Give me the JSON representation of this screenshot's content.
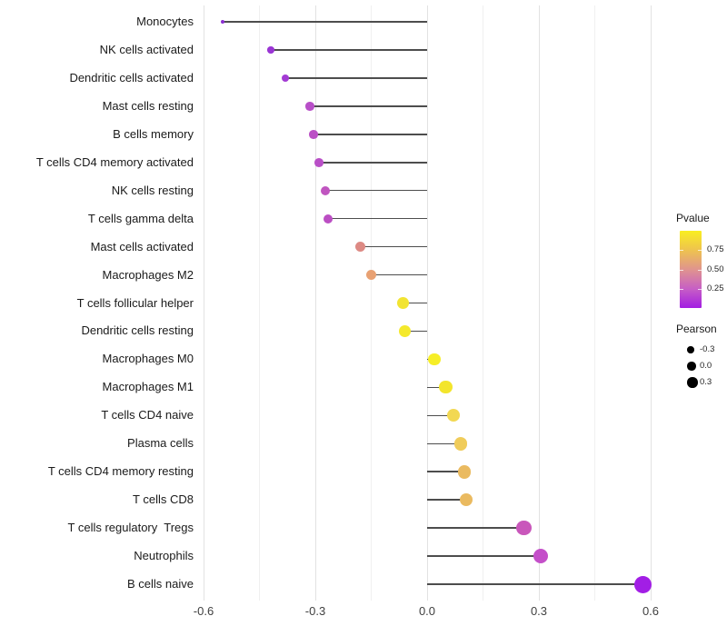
{
  "chart_data": {
    "type": "scatter",
    "subtype": "lollipop",
    "orientation": "horizontal",
    "title": "",
    "xlabel": "",
    "ylabel": "",
    "grid": "vertical-major-and-minor",
    "legend_position": "right",
    "xlim": [
      -0.63,
      0.64
    ],
    "x_ticks": [
      -0.6,
      -0.3,
      0.0,
      0.3,
      0.6
    ],
    "x_tick_labels": [
      "-0.6",
      "-0.3",
      "0.0",
      "0.3",
      "0.6"
    ],
    "x_minor_ticks": [
      -0.45,
      -0.15,
      0.15,
      0.45
    ],
    "baseline": 0.0,
    "stem_color": "#4d4d4d",
    "categories": [
      "Monocytes",
      "NK cells activated",
      "Dendritic cells activated",
      "Mast cells resting",
      "B cells memory",
      "T cells CD4 memory activated",
      "NK cells resting",
      "T cells gamma delta",
      "Mast cells activated",
      "Macrophages M2",
      "T cells follicular helper",
      "Dendritic cells resting",
      "Macrophages M0",
      "Macrophages M1",
      "T cells CD4 naive",
      "Plasma cells",
      "T cells CD4 memory resting",
      "T cells CD8",
      "T cells regulatory  Tregs",
      "Neutrophils",
      "B cells naive"
    ],
    "series": [
      {
        "name": "Pearson",
        "values": [
          -0.55,
          -0.42,
          -0.38,
          -0.315,
          -0.305,
          -0.29,
          -0.273,
          -0.265,
          -0.18,
          -0.15,
          -0.065,
          -0.06,
          0.02,
          0.05,
          0.07,
          0.09,
          0.1,
          0.105,
          0.26,
          0.305,
          0.58
        ]
      }
    ],
    "point_colors": [
      "#8b2fd0",
      "#9a35d4",
      "#a33bd4",
      "#b84fc8",
      "#bb50c5",
      "#b94fc7",
      "#c055c0",
      "#bb4ec3",
      "#dd8a84",
      "#e8a173",
      "#f2e432",
      "#f4e92c",
      "#f6ee27",
      "#f3e52c",
      "#f2d852",
      "#f0cc5a",
      "#eaba60",
      "#eaba60",
      "#c957bb",
      "#c44fc9",
      "#a21ee5"
    ],
    "legends": {
      "pvalue": {
        "title": "Pvalue",
        "tick_labels": [
          "0.75",
          "0.50",
          "0.25"
        ],
        "tick_fractions_from_top": [
          0.25,
          0.5,
          0.75
        ],
        "range": [
          0,
          1
        ],
        "gradient_top_to_bottom": [
          "#f9ee21",
          "#eec34f",
          "#e0948e",
          "#c75fc5",
          "#a31de2"
        ]
      },
      "pearson": {
        "title": "Pearson",
        "dot_color": "#000000",
        "items": [
          {
            "label": "-0.3",
            "value": -0.3
          },
          {
            "label": "0.0",
            "value": 0.0
          },
          {
            "label": "0.3",
            "value": 0.3
          }
        ]
      }
    }
  }
}
